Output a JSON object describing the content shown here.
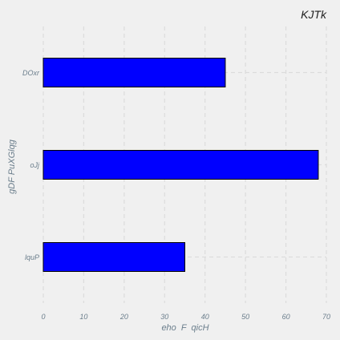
{
  "chart_data": {
    "type": "bar",
    "orientation": "horizontal",
    "title": "KJTk",
    "xlabel": "eho  F  qicH",
    "ylabel": "gDF PuXGlqg",
    "categories": [
      "DOxr",
      "oJj",
      "lquP"
    ],
    "values": [
      45,
      68,
      35
    ],
    "xlim": [
      0,
      70
    ],
    "xticks": [
      0,
      10,
      20,
      30,
      40,
      50,
      60,
      70
    ],
    "grid": true,
    "colors": {
      "bar": "#0000ff",
      "bar_edge": "#000000",
      "grid": "#dcdcdc",
      "background": "#f0f0f0",
      "tick_text": "#6b7e8c"
    }
  }
}
